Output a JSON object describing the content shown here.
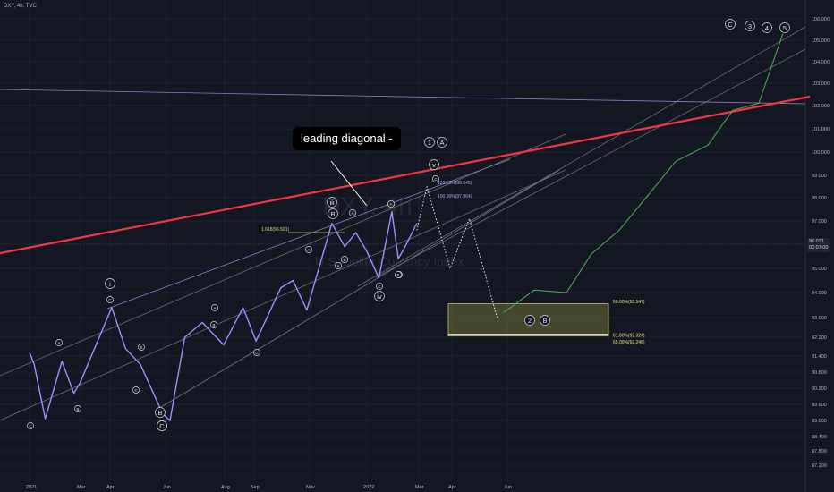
{
  "header": {
    "symbol_line": "DXY, 4h, TVC"
  },
  "watermark": {
    "symbol": "DXY, 4h",
    "name": "U.S. Dollar Currency Index"
  },
  "callout": {
    "text": "leading diagonal -"
  },
  "price_badge": {
    "price": "96.031",
    "countdown": "02:07:00"
  },
  "chart_data": {
    "type": "line",
    "title": "",
    "xlabel": "",
    "ylabel": "",
    "ylim": [
      86.5,
      106.8
    ],
    "x_ticks": [
      "2021",
      "Mar",
      "Apr",
      "Jun",
      "Aug",
      "Sep",
      "Nov",
      "2022",
      "Mar",
      "Apr",
      "Jun"
    ],
    "y_ticks": [
      "106.000",
      "105.000",
      "104.000",
      "103.000",
      "102.000",
      "101.000",
      "100.000",
      "99.000",
      "98.000",
      "97.000",
      "96.000",
      "95.000",
      "94.000",
      "93.000",
      "92.200",
      "91.400",
      "90.800",
      "90.200",
      "89.600",
      "89.000",
      "88.400",
      "87.800",
      "87.200"
    ],
    "series": [
      {
        "style": "purple price path",
        "x": [
          "2021-01-01",
          "2021-01-06",
          "2021-01-18",
          "2021-02-05",
          "2021-02-18",
          "2021-02-25",
          "2021-03-31",
          "2021-04-15",
          "2021-05-01",
          "2021-05-25",
          "2021-06-02",
          "2021-06-18",
          "2021-07-07",
          "2021-07-30",
          "2021-08-20",
          "2021-09-03",
          "2021-09-30",
          "2021-10-13",
          "2021-10-28",
          "2021-11-24",
          "2021-12-08",
          "2021-12-20",
          "2022-01-01",
          "2022-01-14",
          "2022-01-28",
          "2022-02-04",
          "2022-02-10",
          "2022-02-24"
        ],
        "values": [
          91.4,
          91.0,
          89.6,
          91.1,
          90.1,
          90.4,
          93.4,
          91.6,
          91.0,
          89.7,
          89.5,
          92.2,
          92.8,
          91.8,
          93.4,
          92.0,
          94.2,
          94.5,
          93.3,
          96.9,
          95.9,
          96.5,
          95.7,
          94.6,
          97.4,
          95.4,
          95.8,
          96.9
        ]
      },
      {
        "style": "dotted projection",
        "x": [
          "2022-02-24",
          "2022-03-07",
          "2022-04-01",
          "2022-04-22",
          "2022-05-22"
        ],
        "values": [
          96.6,
          98.5,
          95.0,
          97.1,
          93.0
        ]
      },
      {
        "style": "green projection",
        "x": [
          "2022-05-29",
          "2022-07-01",
          "2022-08-05",
          "2022-09-01",
          "2022-10-01",
          "2022-11-01",
          "2022-12-01",
          "2023-01-05",
          "2023-02-01",
          "2023-03-01",
          "2023-03-27"
        ],
        "values": [
          93.2,
          94.1,
          94.0,
          95.6,
          96.6,
          98.1,
          99.6,
          100.3,
          101.8,
          102.1,
          105.3
        ]
      }
    ],
    "fib_levels": [
      {
        "label": "1.618(96.501)",
        "value": 96.5
      },
      {
        "label": "100.00%(97.964)",
        "value": 98.0
      },
      {
        "label": "123.60%(98.645)",
        "value": 98.6
      },
      {
        "label": "50.00%(93.547)",
        "value": 93.5
      },
      {
        "label": "61.80%(92.324)",
        "value": 92.3
      },
      {
        "label": "65.00%(92.248)",
        "value": 92.2
      }
    ],
    "wave_labels": [
      "C",
      "A",
      "B",
      "C",
      "E",
      "C",
      "B",
      "C",
      "A",
      "B",
      "C",
      "A",
      "B",
      "A",
      "C",
      "B",
      "i",
      "C",
      "iii",
      "A",
      "B",
      "iv",
      "C",
      "A",
      "B",
      "v",
      "C",
      "1",
      "A",
      "2",
      "B",
      "C",
      "3",
      "4",
      "5"
    ]
  }
}
